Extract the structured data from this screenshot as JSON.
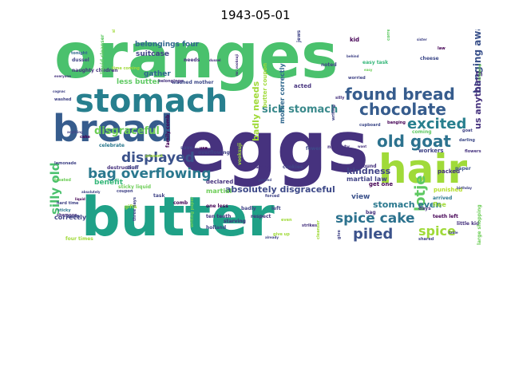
{
  "title": "1943-05-01",
  "palette": [
    "#440154",
    "#46327e",
    "#365c8d",
    "#277f8e",
    "#1fa187",
    "#4ac16d",
    "#a0da39",
    "#fde725"
  ],
  "words": [
    {
      "text": "oranges",
      "color": "#4ac16d"
    },
    {
      "text": "eggs",
      "color": "#46327e"
    },
    {
      "text": "butter",
      "color": "#1fa187"
    },
    {
      "text": "bread",
      "color": "#365c8d"
    },
    {
      "text": "stomach",
      "color": "#277f8e"
    },
    {
      "text": "hair",
      "color": "#a0da39"
    },
    {
      "text": "found bread",
      "color": "#365c8d"
    },
    {
      "text": "chocolate",
      "color": "#365c8d"
    },
    {
      "text": "old goat",
      "color": "#2c728e"
    },
    {
      "text": "excited",
      "color": "#277f8e"
    },
    {
      "text": "bag overflowing",
      "color": "#2a788e"
    },
    {
      "text": "displayed",
      "color": "#3b528b"
    },
    {
      "text": "silly old",
      "color": "#4ac16d"
    },
    {
      "text": "spice cake",
      "color": "#2c728e"
    },
    {
      "text": "piled",
      "color": "#3b528b"
    },
    {
      "text": "spice",
      "color": "#a0da39"
    },
    {
      "text": "lotje",
      "color": "#5ec962"
    },
    {
      "text": "sick stomach",
      "color": "#3b8a8c"
    },
    {
      "text": "disgraceful",
      "color": "#6ece58"
    },
    {
      "text": "absolutely disgraceful",
      "color": "#3e4a89"
    },
    {
      "text": "stomach even",
      "color": "#2a788e"
    },
    {
      "text": "kindness",
      "color": "#414487"
    },
    {
      "text": "banging away",
      "color": "#3b528b"
    },
    {
      "text": "badly needs",
      "color": "#a0da39"
    },
    {
      "text": "us anything",
      "color": "#46327e"
    },
    {
      "text": "belongings four",
      "color": "#31688e"
    },
    {
      "text": "suitcase",
      "color": "#414487"
    },
    {
      "text": "gather",
      "color": "#31688e"
    },
    {
      "text": "less butter",
      "color": "#5ec962"
    },
    {
      "text": "benefit",
      "color": "#35b779"
    },
    {
      "text": "correctly",
      "color": "#414487"
    },
    {
      "text": "view",
      "color": "#3b528b"
    },
    {
      "text": "martial law",
      "color": "#414487"
    },
    {
      "text": "mother correctly",
      "color": "#31688e"
    },
    {
      "text": "washed mother",
      "color": "#3e4a89"
    },
    {
      "text": "butter coupon",
      "color": "#a0da39"
    },
    {
      "text": "martial",
      "color": "#6ece58"
    },
    {
      "text": "needs",
      "color": "#46327e"
    },
    {
      "text": "declared",
      "color": "#46327e"
    },
    {
      "text": "get one",
      "color": "#440154"
    },
    {
      "text": "packed",
      "color": "#46327e"
    },
    {
      "text": "workers",
      "color": "#414487"
    },
    {
      "text": "punished",
      "color": "#b5de2b"
    },
    {
      "text": "arrived",
      "color": "#2a788e"
    },
    {
      "text": "paper",
      "color": "#3b528b"
    },
    {
      "text": "days",
      "color": "#46327e"
    },
    {
      "text": "flee",
      "color": "#a0da39"
    },
    {
      "text": "teeth left",
      "color": "#440154"
    },
    {
      "text": "little kid",
      "color": "#46327e"
    },
    {
      "text": "large shopping",
      "color": "#6ece58"
    },
    {
      "text": "shared",
      "color": "#414487"
    },
    {
      "text": "cheese",
      "color": "#3e4a89"
    },
    {
      "text": "coming",
      "color": "#5ec962"
    },
    {
      "text": "easy task",
      "color": "#35b779"
    },
    {
      "text": "tonight",
      "color": "#31688e"
    },
    {
      "text": "dussel",
      "color": "#414487"
    },
    {
      "text": "naughty children",
      "color": "#46327e"
    },
    {
      "text": "hard time",
      "color": "#414487"
    },
    {
      "text": "sticky",
      "color": "#2a788e"
    },
    {
      "text": "shampoo",
      "color": "#46327e"
    },
    {
      "text": "backs",
      "color": "#414487"
    },
    {
      "text": "four times",
      "color": "#a0da39"
    },
    {
      "text": "liquid cleanser",
      "color": "#5ec962"
    },
    {
      "text": "lemonade",
      "color": "#414487"
    },
    {
      "text": "treated",
      "color": "#6ece58"
    },
    {
      "text": "cake",
      "color": "#440154"
    },
    {
      "text": "celebrate",
      "color": "#2a788e"
    },
    {
      "text": "destruction",
      "color": "#46327e"
    },
    {
      "text": "stuff",
      "color": "#414487"
    },
    {
      "text": "one less",
      "color": "#440154"
    },
    {
      "text": "ten teeth",
      "color": "#46327e"
    },
    {
      "text": "holland",
      "color": "#414487"
    },
    {
      "text": "starving",
      "color": "#46327e"
    },
    {
      "text": "badly",
      "color": "#414487"
    },
    {
      "text": "respect",
      "color": "#46327e"
    },
    {
      "text": "left",
      "color": "#414487"
    },
    {
      "text": "comb",
      "color": "#440154"
    },
    {
      "text": "task",
      "color": "#414487"
    },
    {
      "text": "three days",
      "color": "#414487"
    },
    {
      "text": "besides",
      "color": "#46327e"
    },
    {
      "text": "cookies",
      "color": "#414487"
    },
    {
      "text": "fewer",
      "color": "#3e4a89"
    },
    {
      "text": "naughty",
      "color": "#46327e"
    },
    {
      "text": "found",
      "color": "#46327e"
    },
    {
      "text": "bag",
      "color": "#46327e"
    },
    {
      "text": "acted",
      "color": "#46327e"
    },
    {
      "text": "kid",
      "color": "#440154"
    },
    {
      "text": "noted",
      "color": "#414487"
    },
    {
      "text": "overflowing",
      "color": "#414487"
    },
    {
      "text": "use",
      "color": "#440154"
    },
    {
      "text": "sticky liquid",
      "color": "#6ece58"
    },
    {
      "text": "family comb",
      "color": "#440154"
    },
    {
      "text": "vooksuji",
      "color": "#a0da39"
    },
    {
      "text": "save",
      "color": "#414487"
    },
    {
      "text": "gifts",
      "color": "#a0da39"
    },
    {
      "text": "coupon",
      "color": "#414487"
    },
    {
      "text": "forced",
      "color": "#414487"
    },
    {
      "text": "mr. vooksuji",
      "color": "#46327e"
    },
    {
      "text": "writing",
      "color": "#414487"
    },
    {
      "text": "absolutely",
      "color": "#414487"
    },
    {
      "text": "correctly noted",
      "color": "#5ec962"
    },
    {
      "text": "banging",
      "color": "#440154"
    },
    {
      "text": "darling",
      "color": "#3e4a89"
    },
    {
      "text": "goat",
      "color": "#414487"
    },
    {
      "text": "flowers",
      "color": "#46327e"
    },
    {
      "text": "jews",
      "color": "#414487"
    },
    {
      "text": "law",
      "color": "#440154"
    },
    {
      "text": "sister",
      "color": "#414487"
    },
    {
      "text": "belongings",
      "color": "#46327e"
    },
    {
      "text": "shopping bag",
      "color": "#a0da39"
    },
    {
      "text": "cleanser",
      "color": "#a0da39"
    },
    {
      "text": "give",
      "color": "#414487"
    },
    {
      "text": "strikes",
      "color": "#46327e"
    },
    {
      "text": "cupboard",
      "color": "#3e4a89"
    },
    {
      "text": "worried",
      "color": "#414487"
    },
    {
      "text": "silly",
      "color": "#46327e"
    },
    {
      "text": "everyone",
      "color": "#46327e"
    },
    {
      "text": "washed",
      "color": "#414487"
    },
    {
      "text": "cognac",
      "color": "#414487"
    },
    {
      "text": "anything",
      "color": "#414487"
    },
    {
      "text": "liquid",
      "color": "#440154"
    },
    {
      "text": "writing paper",
      "color": "#6ece58"
    },
    {
      "text": "want",
      "color": "#46327e"
    },
    {
      "text": "already",
      "color": "#414487"
    },
    {
      "text": "shopping",
      "color": "#6ece58"
    },
    {
      "text": "birthday",
      "color": "#414487"
    },
    {
      "text": "table",
      "color": "#414487"
    },
    {
      "text": "give up",
      "color": "#a0da39"
    },
    {
      "text": "even",
      "color": "#a0da39"
    },
    {
      "text": "packed",
      "color": "#414487"
    },
    {
      "text": "time coming",
      "color": "#a0da39"
    },
    {
      "text": "present",
      "color": "#a0da39"
    },
    {
      "text": "dussel",
      "color": "#46327e"
    },
    {
      "text": "behind",
      "color": "#414487"
    },
    {
      "text": "easy",
      "color": "#6ece58"
    }
  ]
}
